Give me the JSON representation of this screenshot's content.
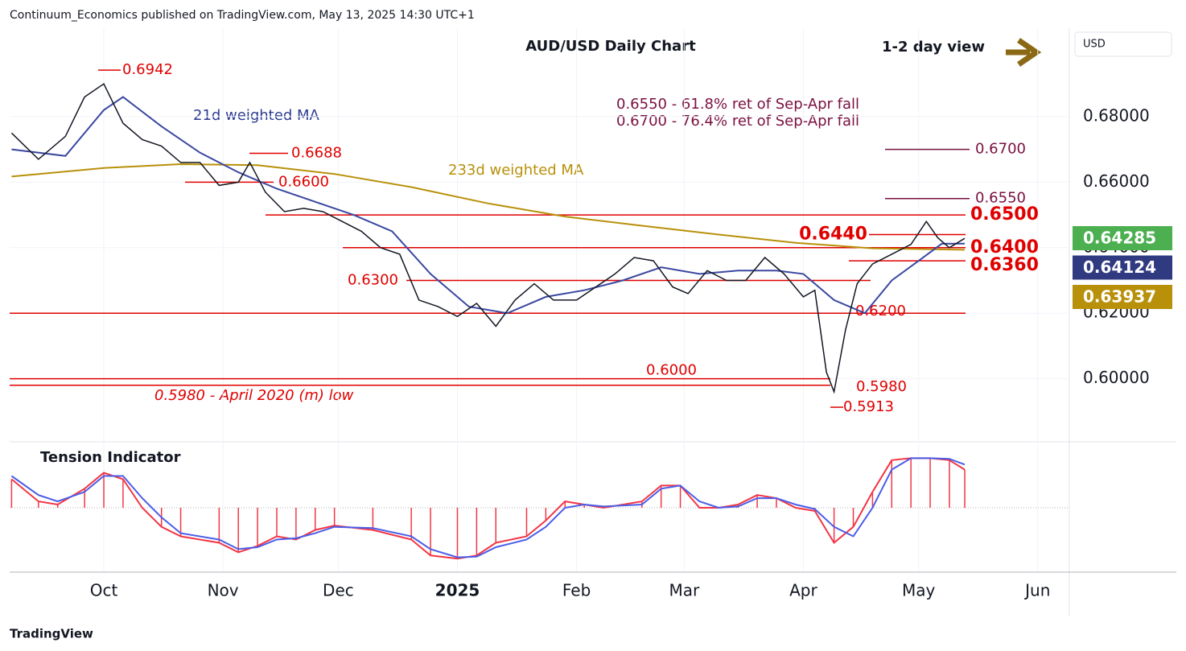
{
  "header": {
    "byline": "Continuum_Economics published on TradingView.com, May 13, 2025 14:30 UTC+1",
    "currency": "USD",
    "footer": "TradingView"
  },
  "chart_data": {
    "type": "line",
    "title": "AUD/USD Daily Chart",
    "subtitle": "1-2 day view",
    "annotations": [
      "0.6550 - 61.8% ret of Sep-Apr fall",
      "0.6700 - 76.4% ret of Sep-Apr fall",
      "21d weighted MA",
      "233d weighted MA",
      "0.5980 - April 2020 (m) low"
    ],
    "xlim": [
      -24.5,
      251
    ],
    "ylim": [
      0.581,
      0.707
    ],
    "xticks": [
      {
        "value": 0,
        "label": "Oct"
      },
      {
        "value": 31,
        "label": "Nov"
      },
      {
        "value": 61,
        "label": "Dec"
      },
      {
        "value": 92,
        "label": "2025"
      },
      {
        "value": 123,
        "label": "Feb"
      },
      {
        "value": 151,
        "label": "Mar"
      },
      {
        "value": 182,
        "label": "Apr"
      },
      {
        "value": 212,
        "label": "May"
      },
      {
        "value": 243,
        "label": "Jun"
      }
    ],
    "yticks": [
      {
        "value": 0.68,
        "label": "0.68000"
      },
      {
        "value": 0.66,
        "label": "0.66000"
      },
      {
        "value": 0.64,
        "label": "0.64000"
      },
      {
        "value": 0.62,
        "label": "0.62000"
      },
      {
        "value": 0.6,
        "label": "0.60000"
      }
    ],
    "series": [
      {
        "name": "AUD/USD",
        "color": "#131722",
        "x": [
          -24,
          -17,
          -10,
          -5,
          0,
          5,
          10,
          15,
          20,
          25,
          30,
          35,
          38,
          42,
          47,
          52,
          57,
          62,
          67,
          72,
          77,
          82,
          87,
          92,
          97,
          102,
          107,
          112,
          117,
          123,
          128,
          133,
          138,
          143,
          148,
          152,
          157,
          162,
          167,
          172,
          177,
          182,
          185,
          188,
          190,
          193,
          196,
          200,
          205,
          210,
          214,
          217,
          220,
          224
        ],
        "values": [
          0.675,
          0.667,
          0.674,
          0.686,
          0.69,
          0.678,
          0.673,
          0.671,
          0.666,
          0.666,
          0.659,
          0.66,
          0.666,
          0.657,
          0.651,
          0.652,
          0.651,
          0.648,
          0.645,
          0.64,
          0.638,
          0.624,
          0.622,
          0.619,
          0.623,
          0.616,
          0.624,
          0.629,
          0.624,
          0.624,
          0.628,
          0.632,
          0.637,
          0.636,
          0.628,
          0.626,
          0.633,
          0.63,
          0.63,
          0.637,
          0.632,
          0.625,
          0.627,
          0.602,
          0.596,
          0.615,
          0.629,
          0.635,
          0.638,
          0.641,
          0.648,
          0.643,
          0.64,
          0.64285
        ]
      },
      {
        "name": "21d weighted MA",
        "color": "#3a48a0",
        "x": [
          -24,
          -10,
          0,
          5,
          15,
          25,
          35,
          45,
          55,
          65,
          75,
          85,
          95,
          105,
          115,
          125,
          135,
          145,
          155,
          165,
          175,
          182,
          190,
          198,
          205,
          212,
          218,
          224
        ],
        "values": [
          0.67,
          0.668,
          0.682,
          0.686,
          0.677,
          0.669,
          0.663,
          0.658,
          0.654,
          0.65,
          0.645,
          0.632,
          0.622,
          0.62,
          0.625,
          0.627,
          0.63,
          0.634,
          0.632,
          0.633,
          0.633,
          0.632,
          0.624,
          0.62,
          0.63,
          0.636,
          0.6412,
          0.64124
        ]
      },
      {
        "name": "233d weighted MA",
        "color": "#b8900a",
        "x": [
          -24,
          0,
          20,
          40,
          60,
          80,
          100,
          120,
          140,
          160,
          180,
          200,
          224
        ],
        "values": [
          0.6617,
          0.6643,
          0.6655,
          0.6652,
          0.6625,
          0.6585,
          0.6535,
          0.6495,
          0.6467,
          0.644,
          0.6415,
          0.6398,
          0.63937
        ]
      }
    ],
    "last_values": [
      {
        "value": 0.64285,
        "label": "0.64285",
        "color": "#4caf50"
      },
      {
        "value": 0.64124,
        "label": "0.64124",
        "color": "#303a80"
      },
      {
        "value": 0.63937,
        "label": "0.63937",
        "color": "#b8900a"
      }
    ],
    "levels": [
      {
        "value": 0.6942,
        "label": "0.6942",
        "color": "#e00000"
      },
      {
        "value": 0.6688,
        "label": "0.6688",
        "color": "#e00000"
      },
      {
        "value": 0.66,
        "label": "0.6600",
        "color": "#e00000"
      },
      {
        "value": 0.67,
        "label": "0.6700",
        "color": "#7a1040"
      },
      {
        "value": 0.655,
        "label": "0.6550",
        "color": "#7a1040"
      },
      {
        "value": 0.65,
        "label": "0.6500",
        "color": "#e00000"
      },
      {
        "value": 0.644,
        "label": "0.6440",
        "color": "#e00000"
      },
      {
        "value": 0.64,
        "label": "0.6400",
        "color": "#e00000"
      },
      {
        "value": 0.636,
        "label": "0.6360",
        "color": "#e00000"
      },
      {
        "value": 0.63,
        "label": "0.6300",
        "color": "#e00000"
      },
      {
        "value": 0.62,
        "label": "0.6200",
        "color": "#e00000"
      },
      {
        "value": 0.6,
        "label": "0.6000",
        "color": "#e00000"
      },
      {
        "value": 0.598,
        "label": "0.5980",
        "color": "#e00000"
      },
      {
        "value": 0.5913,
        "label": "0.5913",
        "color": "#e00000"
      }
    ],
    "indicator": {
      "title": "Tension Indicator",
      "ylim": [
        -1,
        1
      ],
      "series": [
        {
          "color": "#f23645",
          "x": [
            -24,
            -17,
            -12,
            -5,
            0,
            5,
            10,
            15,
            20,
            30,
            35,
            40,
            45,
            50,
            55,
            60,
            70,
            80,
            85,
            92,
            97,
            102,
            110,
            115,
            120,
            125,
            130,
            140,
            145,
            150,
            155,
            160,
            165,
            170,
            175,
            180,
            185,
            190,
            195,
            200,
            205,
            210,
            215,
            220,
            224
          ],
          "values": [
            0.45,
            0.1,
            0.05,
            0.3,
            0.55,
            0.45,
            0.0,
            -0.3,
            -0.45,
            -0.55,
            -0.7,
            -0.6,
            -0.45,
            -0.5,
            -0.35,
            -0.28,
            -0.35,
            -0.5,
            -0.75,
            -0.8,
            -0.75,
            -0.55,
            -0.45,
            -0.2,
            0.1,
            0.05,
            0.0,
            0.1,
            0.35,
            0.35,
            0.0,
            0.0,
            0.05,
            0.2,
            0.15,
            0.0,
            -0.05,
            -0.55,
            -0.3,
            0.25,
            0.75,
            0.78,
            0.78,
            0.75,
            0.6
          ]
        },
        {
          "color": "#4a5ee8",
          "x": [
            -24,
            -17,
            -12,
            -5,
            0,
            5,
            10,
            15,
            20,
            30,
            35,
            40,
            45,
            50,
            55,
            60,
            70,
            80,
            85,
            92,
            97,
            102,
            110,
            115,
            120,
            125,
            130,
            140,
            145,
            150,
            155,
            160,
            165,
            170,
            175,
            180,
            185,
            190,
            195,
            200,
            205,
            210,
            215,
            220,
            224
          ],
          "values": [
            0.5,
            0.2,
            0.1,
            0.25,
            0.5,
            0.5,
            0.15,
            -0.15,
            -0.4,
            -0.5,
            -0.65,
            -0.62,
            -0.5,
            -0.48,
            -0.4,
            -0.3,
            -0.32,
            -0.45,
            -0.65,
            -0.78,
            -0.77,
            -0.62,
            -0.5,
            -0.3,
            0.0,
            0.05,
            0.02,
            0.05,
            0.3,
            0.35,
            0.1,
            0.0,
            0.02,
            0.15,
            0.15,
            0.05,
            -0.02,
            -0.3,
            -0.45,
            0.0,
            0.6,
            0.78,
            0.78,
            0.77,
            0.68
          ]
        }
      ]
    }
  }
}
